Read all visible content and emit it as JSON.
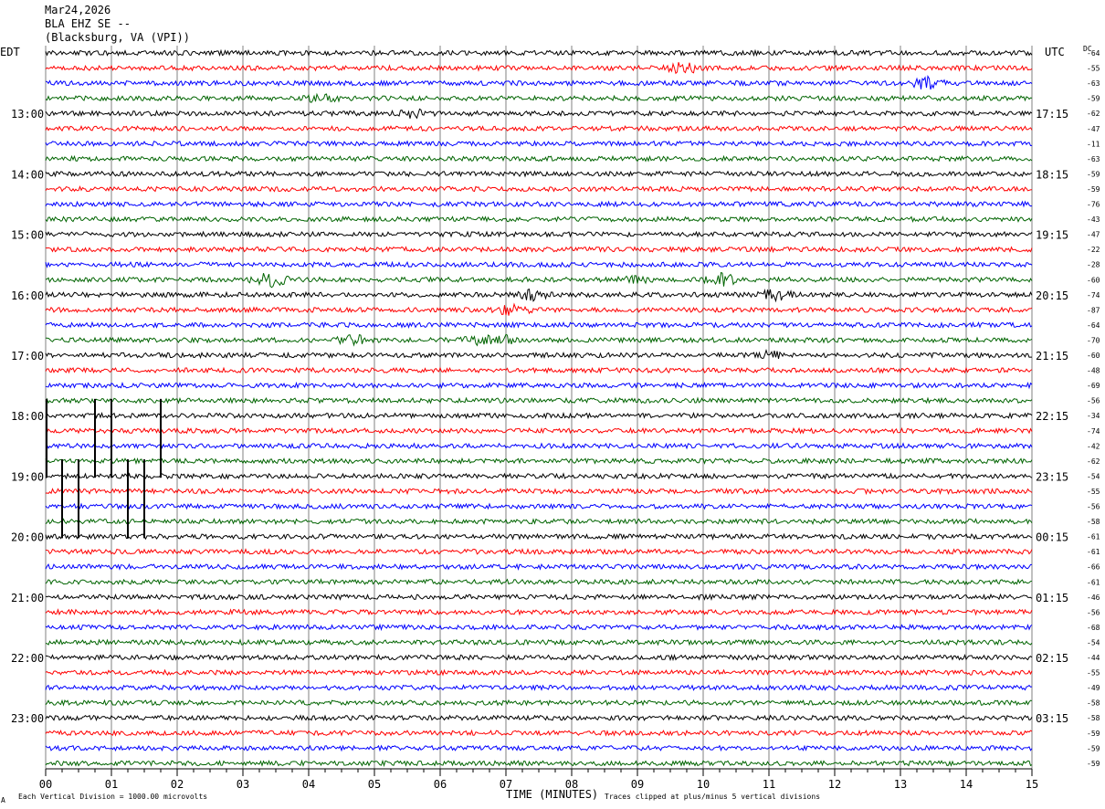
{
  "header": {
    "date": "Mar24,2026",
    "station": "BLA EHZ SE --",
    "location": "(Blacksburg, VA (VPI))"
  },
  "left_timezone": "EDT",
  "right_timezone": "UTC",
  "dc_label": "DC",
  "footer": {
    "scale_note": "Each Vertical Division = 1000.00 microvolts",
    "clip_note": "Traces clipped at plus/minus 5 vertical divisions",
    "corner_mark": "A"
  },
  "chart_data": {
    "type": "line",
    "title": "",
    "xlabel": "TIME (MINUTES)",
    "ylabel": "",
    "xlim": [
      0,
      15
    ],
    "x_ticks": [
      "00",
      "01",
      "02",
      "03",
      "04",
      "05",
      "06",
      "07",
      "08",
      "09",
      "10",
      "11",
      "12",
      "13",
      "14",
      "15"
    ],
    "rows_per_hour": 4,
    "minutes_per_row": 15,
    "row_count": 48,
    "left_hour_labels": [
      "13:00",
      "14:00",
      "15:00",
      "16:00",
      "17:00",
      "18:00",
      "19:00",
      "20:00",
      "21:00",
      "22:00",
      "23:00"
    ],
    "right_hour_labels": [
      "17:15",
      "18:15",
      "19:15",
      "20:15",
      "21:15",
      "22:15",
      "23:15",
      "00:15",
      "01:15",
      "02:15",
      "03:15"
    ],
    "first_labeled_row": 4,
    "trace_colors": [
      "#000000",
      "#ff0000",
      "#0000ff",
      "#006400"
    ],
    "dc_offsets": [
      -64,
      -55,
      -63,
      -59,
      -62,
      -47,
      -11,
      -63,
      -59,
      -59,
      -76,
      -43,
      -47,
      -22,
      -28,
      -60,
      -74,
      -87,
      -64,
      -70,
      -60,
      -48,
      -69,
      -56,
      -34,
      -74,
      -42,
      -62,
      -54,
      -55,
      -56,
      -58,
      -61,
      -61,
      -66,
      -61,
      -46,
      -56,
      -68,
      -54,
      -44,
      -55,
      -49,
      -58,
      -58,
      -59,
      -59,
      -59
    ],
    "events": [
      {
        "row": 1,
        "minute": 9.7,
        "amplitude": 2.0
      },
      {
        "row": 2,
        "minute": 13.4,
        "amplitude": 2.2
      },
      {
        "row": 3,
        "minute": 4.2,
        "amplitude": 1.6
      },
      {
        "row": 4,
        "minute": 5.6,
        "amplitude": 1.4
      },
      {
        "row": 15,
        "minute": 3.4,
        "amplitude": 2.6
      },
      {
        "row": 15,
        "minute": 10.3,
        "amplitude": 2.2
      },
      {
        "row": 15,
        "minute": 9.0,
        "amplitude": 1.3
      },
      {
        "row": 16,
        "minute": 7.4,
        "amplitude": 1.8
      },
      {
        "row": 16,
        "minute": 11.1,
        "amplitude": 2.0
      },
      {
        "row": 17,
        "minute": 7.1,
        "amplitude": 1.8
      },
      {
        "row": 19,
        "minute": 4.7,
        "amplitude": 1.6
      },
      {
        "row": 19,
        "minute": 6.6,
        "amplitude": 1.5
      },
      {
        "row": 19,
        "minute": 7.0,
        "amplitude": 1.4
      },
      {
        "row": 20,
        "minute": 11.0,
        "amplitude": 1.3
      }
    ],
    "clipped_spikes": [
      {
        "minute": 0.0,
        "row_start": 23,
        "row_end": 28
      },
      {
        "minute": 0.25,
        "row_start": 27,
        "row_end": 32
      },
      {
        "minute": 0.5,
        "row_start": 27,
        "row_end": 32
      },
      {
        "minute": 0.75,
        "row_start": 23,
        "row_end": 28
      },
      {
        "minute": 1.0,
        "row_start": 23,
        "row_end": 28
      },
      {
        "minute": 1.25,
        "row_start": 27,
        "row_end": 32
      },
      {
        "minute": 1.5,
        "row_start": 27,
        "row_end": 32
      },
      {
        "minute": 1.75,
        "row_start": 23,
        "row_end": 28
      }
    ]
  }
}
